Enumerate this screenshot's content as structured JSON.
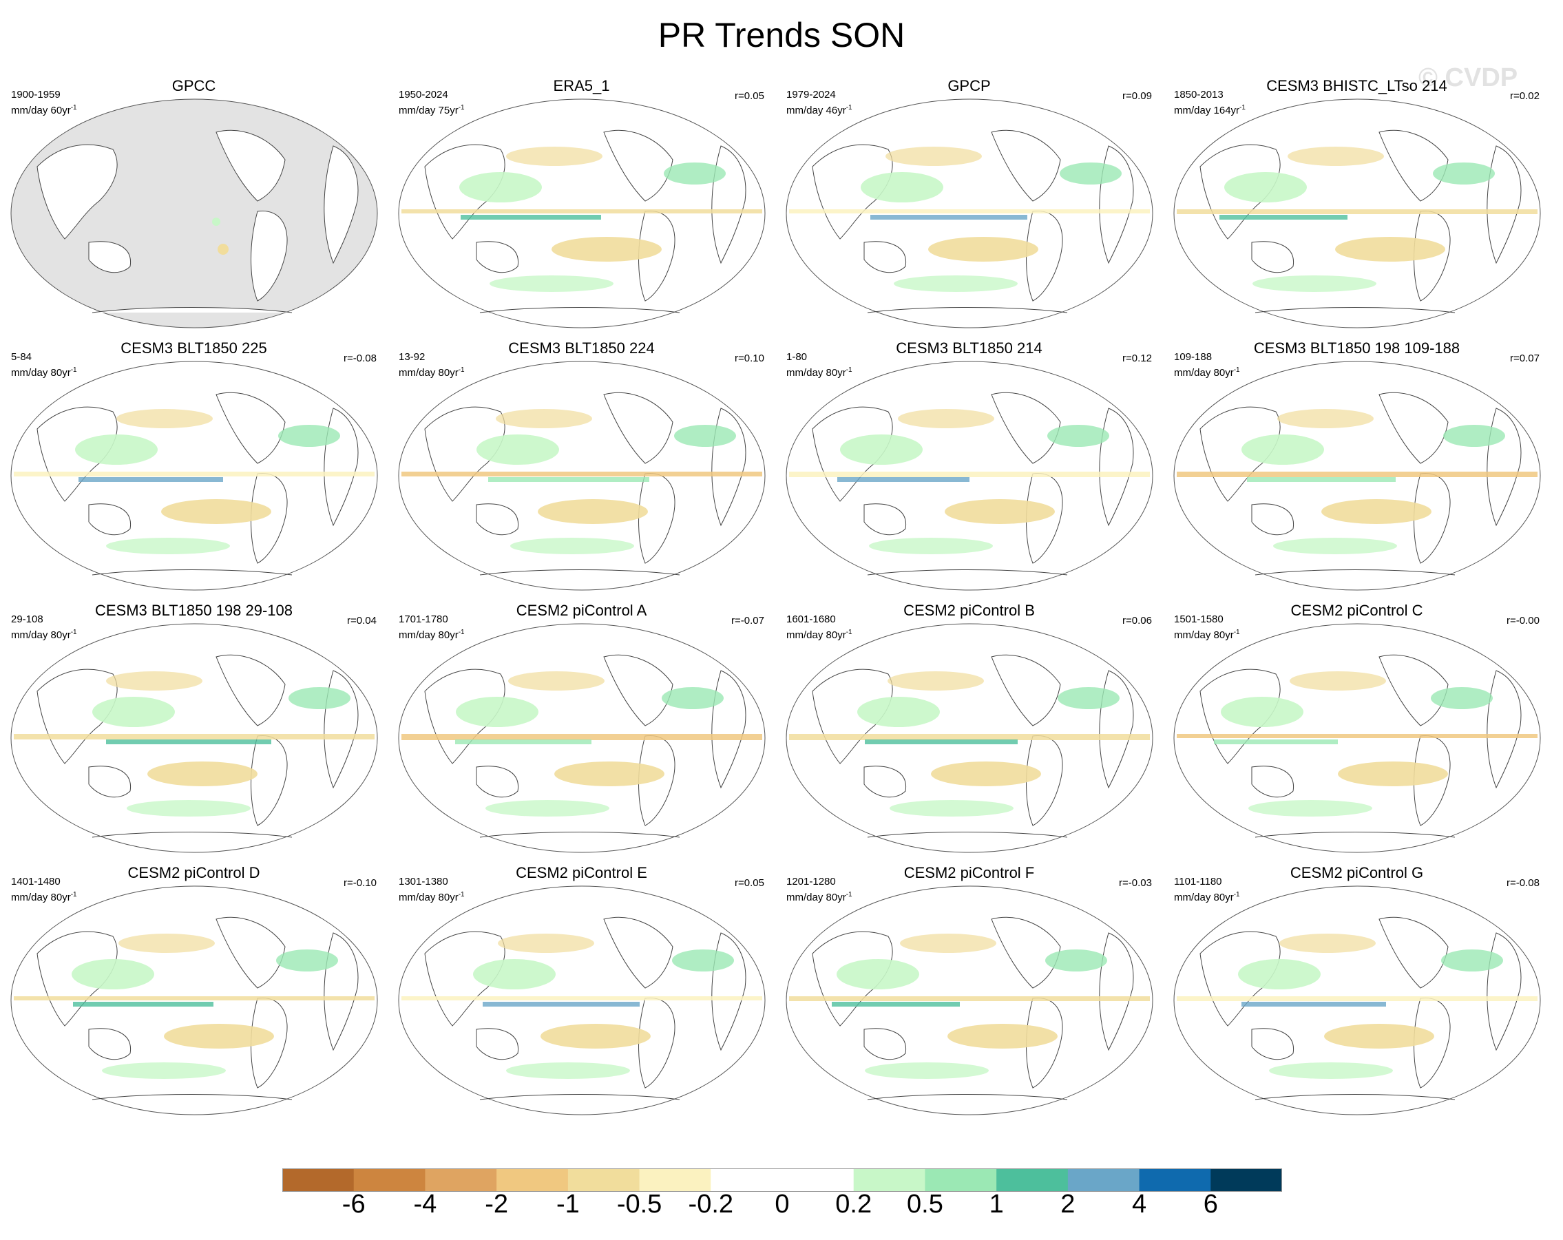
{
  "title": "PR Trends SON",
  "watermark": "© CVDP",
  "panels": [
    {
      "title": "GPCC",
      "period": "1900-1959",
      "units": "mm/day 60yr",
      "r": ""
    },
    {
      "title": "ERA5_1",
      "period": "1950-2024",
      "units": "mm/day 75yr",
      "r": "r=0.05"
    },
    {
      "title": "GPCP",
      "period": "1979-2024",
      "units": "mm/day 46yr",
      "r": "r=0.09"
    },
    {
      "title": "CESM3 BHISTC_LTso 214",
      "period": "1850-2013",
      "units": "mm/day 164yr",
      "r": "r=0.02"
    },
    {
      "title": "CESM3 BLT1850 225",
      "period": "5-84",
      "units": "mm/day 80yr",
      "r": "r=-0.08"
    },
    {
      "title": "CESM3 BLT1850 224",
      "period": "13-92",
      "units": "mm/day 80yr",
      "r": "r=0.10"
    },
    {
      "title": "CESM3 BLT1850 214",
      "period": "1-80",
      "units": "mm/day 80yr",
      "r": "r=0.12"
    },
    {
      "title": "CESM3 BLT1850 198 109-188",
      "period": "109-188",
      "units": "mm/day 80yr",
      "r": "r=0.07"
    },
    {
      "title": "CESM3 BLT1850 198 29-108",
      "period": "29-108",
      "units": "mm/day 80yr",
      "r": "r=0.04"
    },
    {
      "title": "CESM2 piControl A",
      "period": "1701-1780",
      "units": "mm/day 80yr",
      "r": "r=-0.07"
    },
    {
      "title": "CESM2 piControl B",
      "period": "1601-1680",
      "units": "mm/day 80yr",
      "r": "r=0.06"
    },
    {
      "title": "CESM2 piControl C",
      "period": "1501-1580",
      "units": "mm/day 80yr",
      "r": "r=-0.00"
    },
    {
      "title": "CESM2 piControl D",
      "period": "1401-1480",
      "units": "mm/day 80yr",
      "r": "r=-0.10"
    },
    {
      "title": "CESM2 piControl E",
      "period": "1301-1380",
      "units": "mm/day 80yr",
      "r": "r=0.05"
    },
    {
      "title": "CESM2 piControl F",
      "period": "1201-1280",
      "units": "mm/day 80yr",
      "r": "r=-0.03"
    },
    {
      "title": "CESM2 piControl G",
      "period": "1101-1180",
      "units": "mm/day 80yr",
      "r": "r=-0.08"
    }
  ],
  "colorbar": {
    "labels": [
      "-6",
      "-4",
      "-2",
      "-1",
      "-0.5",
      "-0.2",
      "0",
      "0.2",
      "0.5",
      "1",
      "2",
      "4",
      "6"
    ],
    "colors": [
      "#b3692b",
      "#cd853f",
      "#dfa461",
      "#f0c880",
      "#f1dd9c",
      "#fbf2c0",
      "#ffffff",
      "#ffffff",
      "#c8f7c8",
      "#9be8b4",
      "#4dbf9c",
      "#6aa6c8",
      "#0f6aae",
      "#003a5a"
    ]
  },
  "masked_color": "#e3e3e3"
}
